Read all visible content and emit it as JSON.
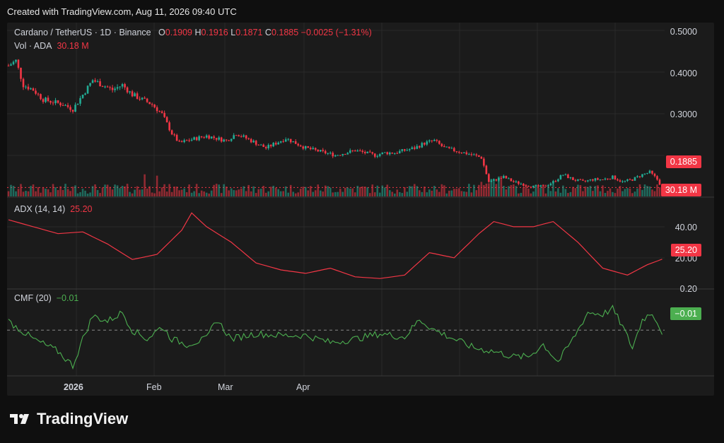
{
  "header": {
    "created_text": "Created with TradingView.com, Aug 11, 2026 09:40 UTC"
  },
  "legend": {
    "symbol": "Cardano / TetherUS · 1D · Binance",
    "open_label": "O",
    "open": "0.1909",
    "high_label": "H",
    "high": "0.1916",
    "low_label": "L",
    "low": "0.1871",
    "close_label": "C",
    "close": "0.1885",
    "change": "−0.0025 (−1.31%)",
    "vol_label": "Vol · ADA",
    "vol_value": "30.18 M",
    "adx_label": "ADX (14, 14)",
    "adx_value": "25.20",
    "cmf_label": "CMF (20)",
    "cmf_value": "−0.01"
  },
  "price_axis": [
    "0.5000",
    "0.4000",
    "0.3000"
  ],
  "adx_axis": [
    "40.00",
    "20.00"
  ],
  "cmf_axis": [
    "0.20"
  ],
  "badges": {
    "price": "0.1885",
    "volume": "30.18 M",
    "adx": "25.20",
    "cmf": "−0.01"
  },
  "x_axis": [
    "2026",
    "Feb",
    "Mar",
    "Apr"
  ],
  "brand": "TradingView",
  "colors": {
    "up": "#22ab94",
    "down": "#f23645",
    "adx": "#f23645",
    "cmf": "#4caf50",
    "bg": "#1b1b1b"
  },
  "chart_data": {
    "type": "candlestick",
    "ylim_price": [
      0.17,
      0.52
    ],
    "price_close_trend": [
      [
        0,
        0.44
      ],
      [
        3,
        0.45
      ],
      [
        6,
        0.4
      ],
      [
        10,
        0.39
      ],
      [
        14,
        0.37
      ],
      [
        18,
        0.365
      ],
      [
        22,
        0.36
      ],
      [
        26,
        0.35
      ],
      [
        30,
        0.38
      ],
      [
        34,
        0.41
      ],
      [
        38,
        0.4
      ],
      [
        42,
        0.39
      ],
      [
        46,
        0.4
      ],
      [
        50,
        0.38
      ],
      [
        54,
        0.37
      ],
      [
        58,
        0.36
      ],
      [
        62,
        0.34
      ],
      [
        66,
        0.3
      ],
      [
        69,
        0.28
      ],
      [
        72,
        0.285
      ],
      [
        76,
        0.29
      ],
      [
        80,
        0.295
      ],
      [
        84,
        0.29
      ],
      [
        88,
        0.285
      ],
      [
        92,
        0.3
      ],
      [
        96,
        0.29
      ],
      [
        100,
        0.28
      ],
      [
        104,
        0.27
      ],
      [
        108,
        0.28
      ],
      [
        112,
        0.29
      ],
      [
        116,
        0.28
      ],
      [
        120,
        0.27
      ],
      [
        124,
        0.265
      ],
      [
        128,
        0.26
      ],
      [
        132,
        0.255
      ],
      [
        136,
        0.26
      ],
      [
        140,
        0.265
      ],
      [
        144,
        0.26
      ],
      [
        148,
        0.255
      ],
      [
        152,
        0.26
      ],
      [
        156,
        0.26
      ],
      [
        160,
        0.265
      ],
      [
        164,
        0.27
      ],
      [
        168,
        0.28
      ],
      [
        172,
        0.285
      ],
      [
        176,
        0.27
      ],
      [
        180,
        0.265
      ],
      [
        184,
        0.26
      ],
      [
        188,
        0.255
      ],
      [
        191,
        0.25
      ],
      [
        194,
        0.2
      ],
      [
        197,
        0.205
      ],
      [
        200,
        0.21
      ],
      [
        204,
        0.2
      ],
      [
        208,
        0.195
      ],
      [
        212,
        0.19
      ],
      [
        216,
        0.19
      ],
      [
        220,
        0.2
      ],
      [
        224,
        0.215
      ],
      [
        228,
        0.205
      ],
      [
        232,
        0.2
      ],
      [
        236,
        0.205
      ],
      [
        240,
        0.205
      ],
      [
        244,
        0.21
      ],
      [
        248,
        0.2
      ],
      [
        252,
        0.205
      ],
      [
        256,
        0.215
      ],
      [
        259,
        0.22
      ],
      [
        262,
        0.205
      ],
      [
        264,
        0.1885
      ]
    ],
    "adx_trend": [
      [
        0,
        48
      ],
      [
        10,
        44
      ],
      [
        20,
        40
      ],
      [
        30,
        41
      ],
      [
        40,
        34
      ],
      [
        50,
        25
      ],
      [
        60,
        28
      ],
      [
        70,
        42
      ],
      [
        74,
        52
      ],
      [
        80,
        44
      ],
      [
        90,
        35
      ],
      [
        100,
        23
      ],
      [
        110,
        19
      ],
      [
        120,
        17
      ],
      [
        130,
        20
      ],
      [
        140,
        15
      ],
      [
        150,
        14
      ],
      [
        160,
        16
      ],
      [
        170,
        29
      ],
      [
        180,
        26
      ],
      [
        190,
        40
      ],
      [
        196,
        47
      ],
      [
        204,
        44
      ],
      [
        212,
        44
      ],
      [
        220,
        47
      ],
      [
        230,
        35
      ],
      [
        240,
        20
      ],
      [
        250,
        16
      ],
      [
        258,
        22
      ],
      [
        264,
        25.2
      ]
    ],
    "cmf_trend": [
      [
        0,
        0.05
      ],
      [
        5,
        0.0
      ],
      [
        10,
        -0.05
      ],
      [
        20,
        -0.12
      ],
      [
        26,
        -0.2
      ],
      [
        30,
        -0.05
      ],
      [
        34,
        0.08
      ],
      [
        40,
        0.05
      ],
      [
        46,
        0.1
      ],
      [
        50,
        0.0
      ],
      [
        56,
        -0.05
      ],
      [
        62,
        0.02
      ],
      [
        66,
        -0.05
      ],
      [
        72,
        -0.08
      ],
      [
        80,
        -0.05
      ],
      [
        84,
        0.06
      ],
      [
        90,
        -0.05
      ],
      [
        96,
        -0.03
      ],
      [
        100,
        -0.02
      ],
      [
        110,
        -0.03
      ],
      [
        120,
        -0.03
      ],
      [
        130,
        -0.07
      ],
      [
        140,
        -0.05
      ],
      [
        150,
        -0.02
      ],
      [
        160,
        -0.04
      ],
      [
        166,
        0.06
      ],
      [
        172,
        0.0
      ],
      [
        180,
        -0.05
      ],
      [
        188,
        -0.1
      ],
      [
        196,
        -0.12
      ],
      [
        204,
        -0.15
      ],
      [
        210,
        -0.15
      ],
      [
        216,
        -0.08
      ],
      [
        222,
        -0.18
      ],
      [
        228,
        -0.05
      ],
      [
        234,
        0.1
      ],
      [
        240,
        0.09
      ],
      [
        244,
        0.12
      ],
      [
        248,
        0.02
      ],
      [
        252,
        -0.1
      ],
      [
        256,
        0.06
      ],
      [
        260,
        0.1
      ],
      [
        264,
        -0.01
      ]
    ],
    "ylim_adx": [
      10,
      55
    ],
    "ylim_cmf": [
      -0.25,
      0.22
    ]
  }
}
